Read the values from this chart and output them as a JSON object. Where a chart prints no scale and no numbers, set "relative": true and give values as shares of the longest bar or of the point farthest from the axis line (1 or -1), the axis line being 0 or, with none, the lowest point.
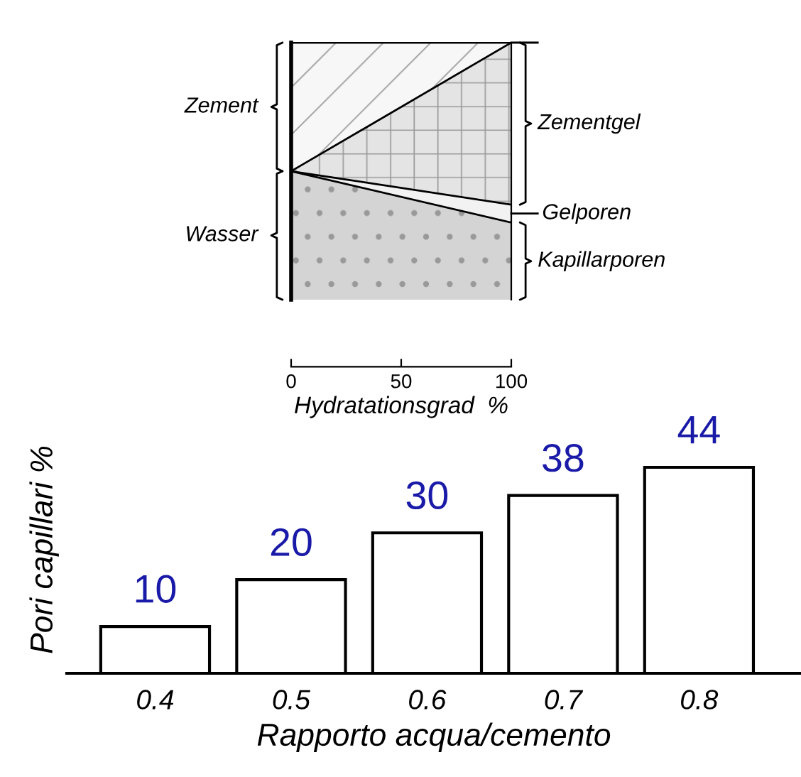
{
  "chart_data": [
    {
      "type": "area",
      "stacked": true,
      "relative": true,
      "xlabel": "Hydratationsgrad  %",
      "x": [
        0,
        100
      ],
      "xlim": [
        0,
        100
      ],
      "xticks": [
        0,
        50,
        100
      ],
      "series": [
        {
          "name": "Kapillarporen",
          "color": "#d4d4d4",
          "values": [
            0.5,
            0.3
          ]
        },
        {
          "name": "Gelporen",
          "color": "#f2f2f2",
          "values": [
            0,
            0.07
          ]
        },
        {
          "name": "Zementgel",
          "color": "#e4e4e4",
          "values": [
            0,
            0.63
          ]
        },
        {
          "name": "Zement",
          "color": "#f7f7f7",
          "values": [
            0.5,
            0
          ]
        }
      ],
      "annotations": [
        "Wasser"
      ]
    },
    {
      "type": "bar",
      "categories": [
        "0.4",
        "0.5",
        "0.6",
        "0.7",
        "0.8"
      ],
      "values": [
        10,
        20,
        30,
        38,
        44
      ],
      "color": "#ffffff",
      "data_labels": true,
      "xlabel": "Rapporto acqua/cemento",
      "ylabel": "Pori capillari %"
    }
  ]
}
